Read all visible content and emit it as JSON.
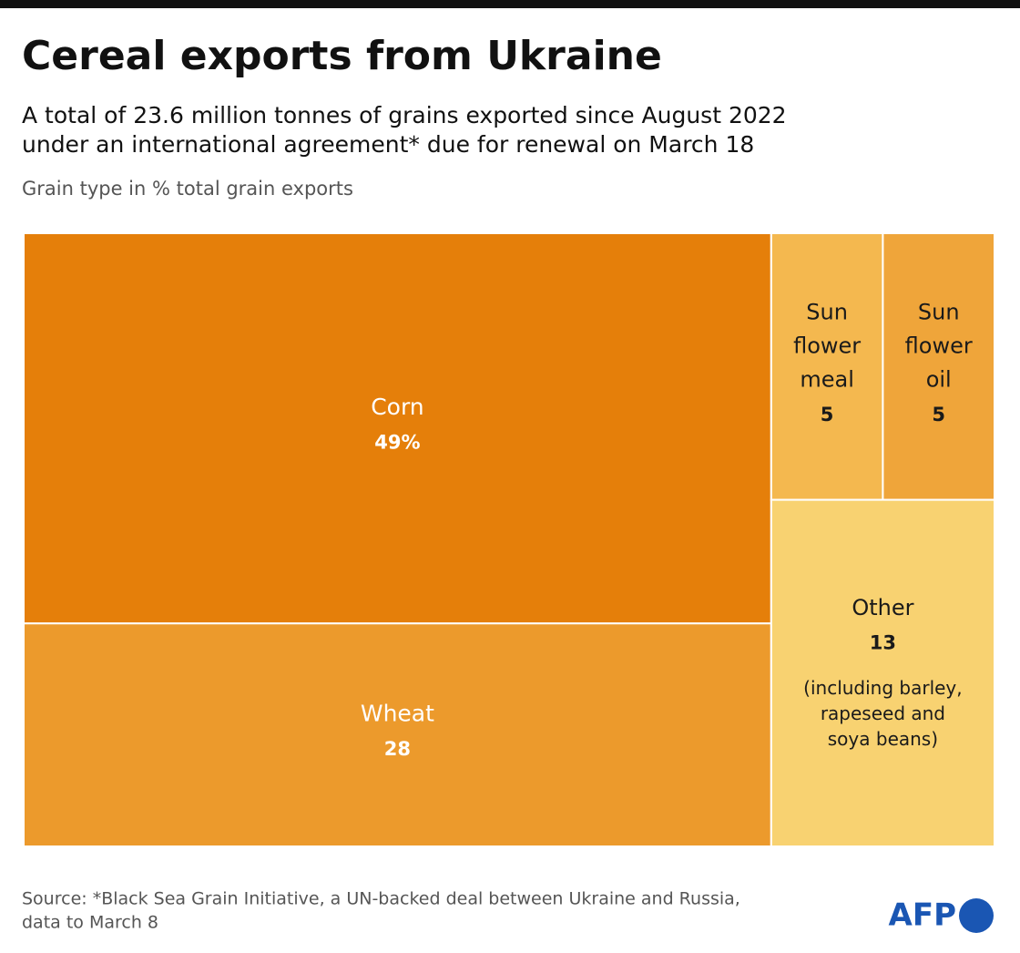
{
  "chart_data": {
    "type": "treemap",
    "title": "Cereal exports from Ukraine",
    "subtitle": [
      "A total of 23.6 million tonnes of grains exported since August 2022",
      "under an international agreement* due for renewal on March 18"
    ],
    "caption": "Grain type in % total grain exports",
    "categories": [
      "Corn",
      "Wheat",
      "Sun flower meal",
      "Sun flower oil",
      "Other"
    ],
    "values": [
      49,
      28,
      5,
      5,
      13
    ],
    "value_labels": [
      "49%",
      "28",
      "5",
      "5",
      "13"
    ],
    "colors": [
      "#e57f0a",
      "#ec9a2c",
      "#f4b84f",
      "#efa53a",
      "#f8d271"
    ],
    "label_colors": [
      "#ffffff",
      "#ffffff",
      "#1a1a1a",
      "#1a1a1a",
      "#1a1a1a"
    ],
    "annotations": [
      "(including barley,",
      "rapeseed and",
      "soya beans)"
    ],
    "source": [
      "Source: *Black Sea Grain Initiative, a UN-backed deal between Ukraine and Russia,",
      "data to March 8"
    ],
    "logo": "AFP"
  }
}
